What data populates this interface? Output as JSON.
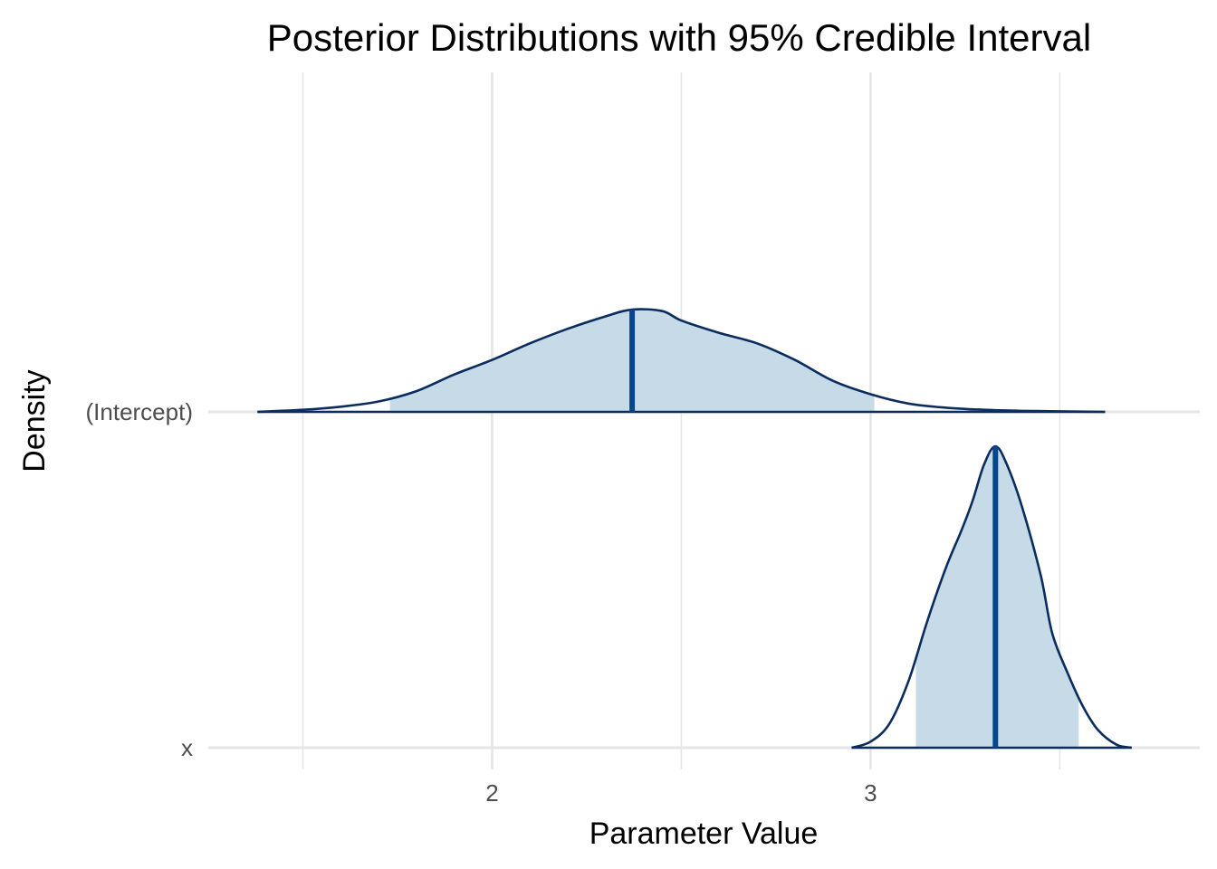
{
  "chart_data": {
    "type": "ridgeline-density",
    "title": "Posterior Distributions with 95% Credible Interval",
    "xlabel": "Parameter Value",
    "ylabel": "Density",
    "xlim": [
      1.25,
      3.87
    ],
    "x_ticks": [
      2,
      3
    ],
    "x_gridlines": [
      1.5,
      2,
      2.5,
      3,
      3.5
    ],
    "grid": true,
    "legend": "none",
    "colors": {
      "fill": "#c6dae8",
      "outline": "#0b2c5f",
      "median_line": "#08468a",
      "grid": "#e6e6e6"
    },
    "series": [
      {
        "name": "(Intercept)",
        "median": 2.37,
        "ci95": [
          1.73,
          3.01
        ],
        "relative_peak_height": 0.31,
        "density": [
          [
            1.38,
            0.0
          ],
          [
            1.5,
            0.02
          ],
          [
            1.6,
            0.05
          ],
          [
            1.7,
            0.1
          ],
          [
            1.8,
            0.2
          ],
          [
            1.9,
            0.36
          ],
          [
            2.0,
            0.5
          ],
          [
            2.1,
            0.66
          ],
          [
            2.2,
            0.8
          ],
          [
            2.3,
            0.92
          ],
          [
            2.37,
            0.985
          ],
          [
            2.45,
            0.97
          ],
          [
            2.5,
            0.88
          ],
          [
            2.6,
            0.76
          ],
          [
            2.7,
            0.66
          ],
          [
            2.8,
            0.5
          ],
          [
            2.9,
            0.3
          ],
          [
            3.0,
            0.17
          ],
          [
            3.1,
            0.08
          ],
          [
            3.2,
            0.04
          ],
          [
            3.3,
            0.02
          ],
          [
            3.4,
            0.01
          ],
          [
            3.5,
            0.005
          ],
          [
            3.62,
            0.0
          ]
        ]
      },
      {
        "name": "x",
        "median": 3.33,
        "ci95": [
          3.12,
          3.55
        ],
        "relative_peak_height": 0.9,
        "density": [
          [
            2.95,
            0.0
          ],
          [
            3.0,
            0.02
          ],
          [
            3.05,
            0.08
          ],
          [
            3.1,
            0.22
          ],
          [
            3.15,
            0.42
          ],
          [
            3.2,
            0.6
          ],
          [
            3.24,
            0.72
          ],
          [
            3.27,
            0.82
          ],
          [
            3.3,
            0.94
          ],
          [
            3.33,
            1.0
          ],
          [
            3.36,
            0.94
          ],
          [
            3.4,
            0.8
          ],
          [
            3.45,
            0.57
          ],
          [
            3.48,
            0.38
          ],
          [
            3.52,
            0.25
          ],
          [
            3.56,
            0.14
          ],
          [
            3.6,
            0.06
          ],
          [
            3.65,
            0.01
          ],
          [
            3.69,
            0.0
          ]
        ]
      }
    ]
  }
}
